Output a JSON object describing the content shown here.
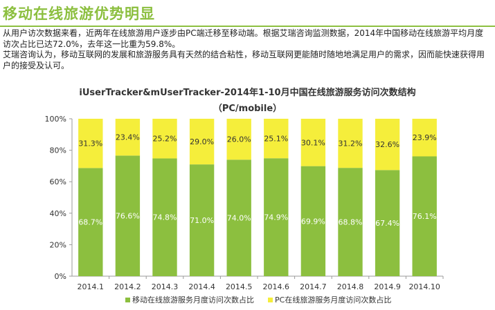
{
  "page": {
    "title": "移动在线旅游优势明显",
    "paragraphs": [
      "从用户访次数据来看，近两年在线旅游用户逐步由PC端迁移至移动端。根据艾瑞咨询监测数据，2014年中国移动在线旅游平均月度访次占比已达72.0%，去年这一比重为59.8%。",
      "艾瑞咨询认为，移动互联网的发展和旅游服务具有天然的结合粘性，移动互联网更能随时随地地满足用户的需求，因而能快速获得用户的接受及认可。"
    ]
  },
  "chart_data": {
    "type": "bar",
    "stacked": true,
    "title": "iUserTracker&mUserTracker-2014年1-10月中国在线旅游服务访问次数结构",
    "subtitle": "（PC/mobile）",
    "categories": [
      "2014.1",
      "2014.2",
      "2014.3",
      "2014.4",
      "2014.5",
      "2014.6",
      "2014.7",
      "2014.8",
      "2014.9",
      "2014.10"
    ],
    "series": [
      {
        "name": "移动在线旅游服务月度访问次数占比",
        "color": "#8cbf3f",
        "values": [
          68.7,
          76.6,
          74.8,
          71.0,
          74.0,
          74.9,
          69.9,
          68.8,
          67.4,
          76.1
        ],
        "labels": [
          "68.7%",
          "76.6%",
          "74.8%",
          "71.0%",
          "74.0%",
          "74.9%",
          "69.9%",
          "68.8%",
          "67.4%",
          "76.1%"
        ]
      },
      {
        "name": "PC在线旅游服务月度访问次数占比",
        "color": "#f5ee3b",
        "values": [
          31.3,
          23.4,
          25.2,
          29.0,
          26.0,
          25.1,
          30.1,
          31.2,
          32.6,
          23.9
        ],
        "labels": [
          "31.3%",
          "23.4%",
          "25.2%",
          "29.0%",
          "26.0%",
          "25.1%",
          "30.1%",
          "31.2%",
          "32.6%",
          "23.9%"
        ]
      }
    ],
    "ylim": [
      0,
      100
    ],
    "yticks": [
      0,
      20,
      40,
      60,
      80,
      100
    ],
    "ytick_labels": [
      "0%",
      "20%",
      "40%",
      "60%",
      "80%",
      "100%"
    ],
    "xlabel": "",
    "ylabel": "",
    "legend_position": "bottom",
    "grid": false
  }
}
